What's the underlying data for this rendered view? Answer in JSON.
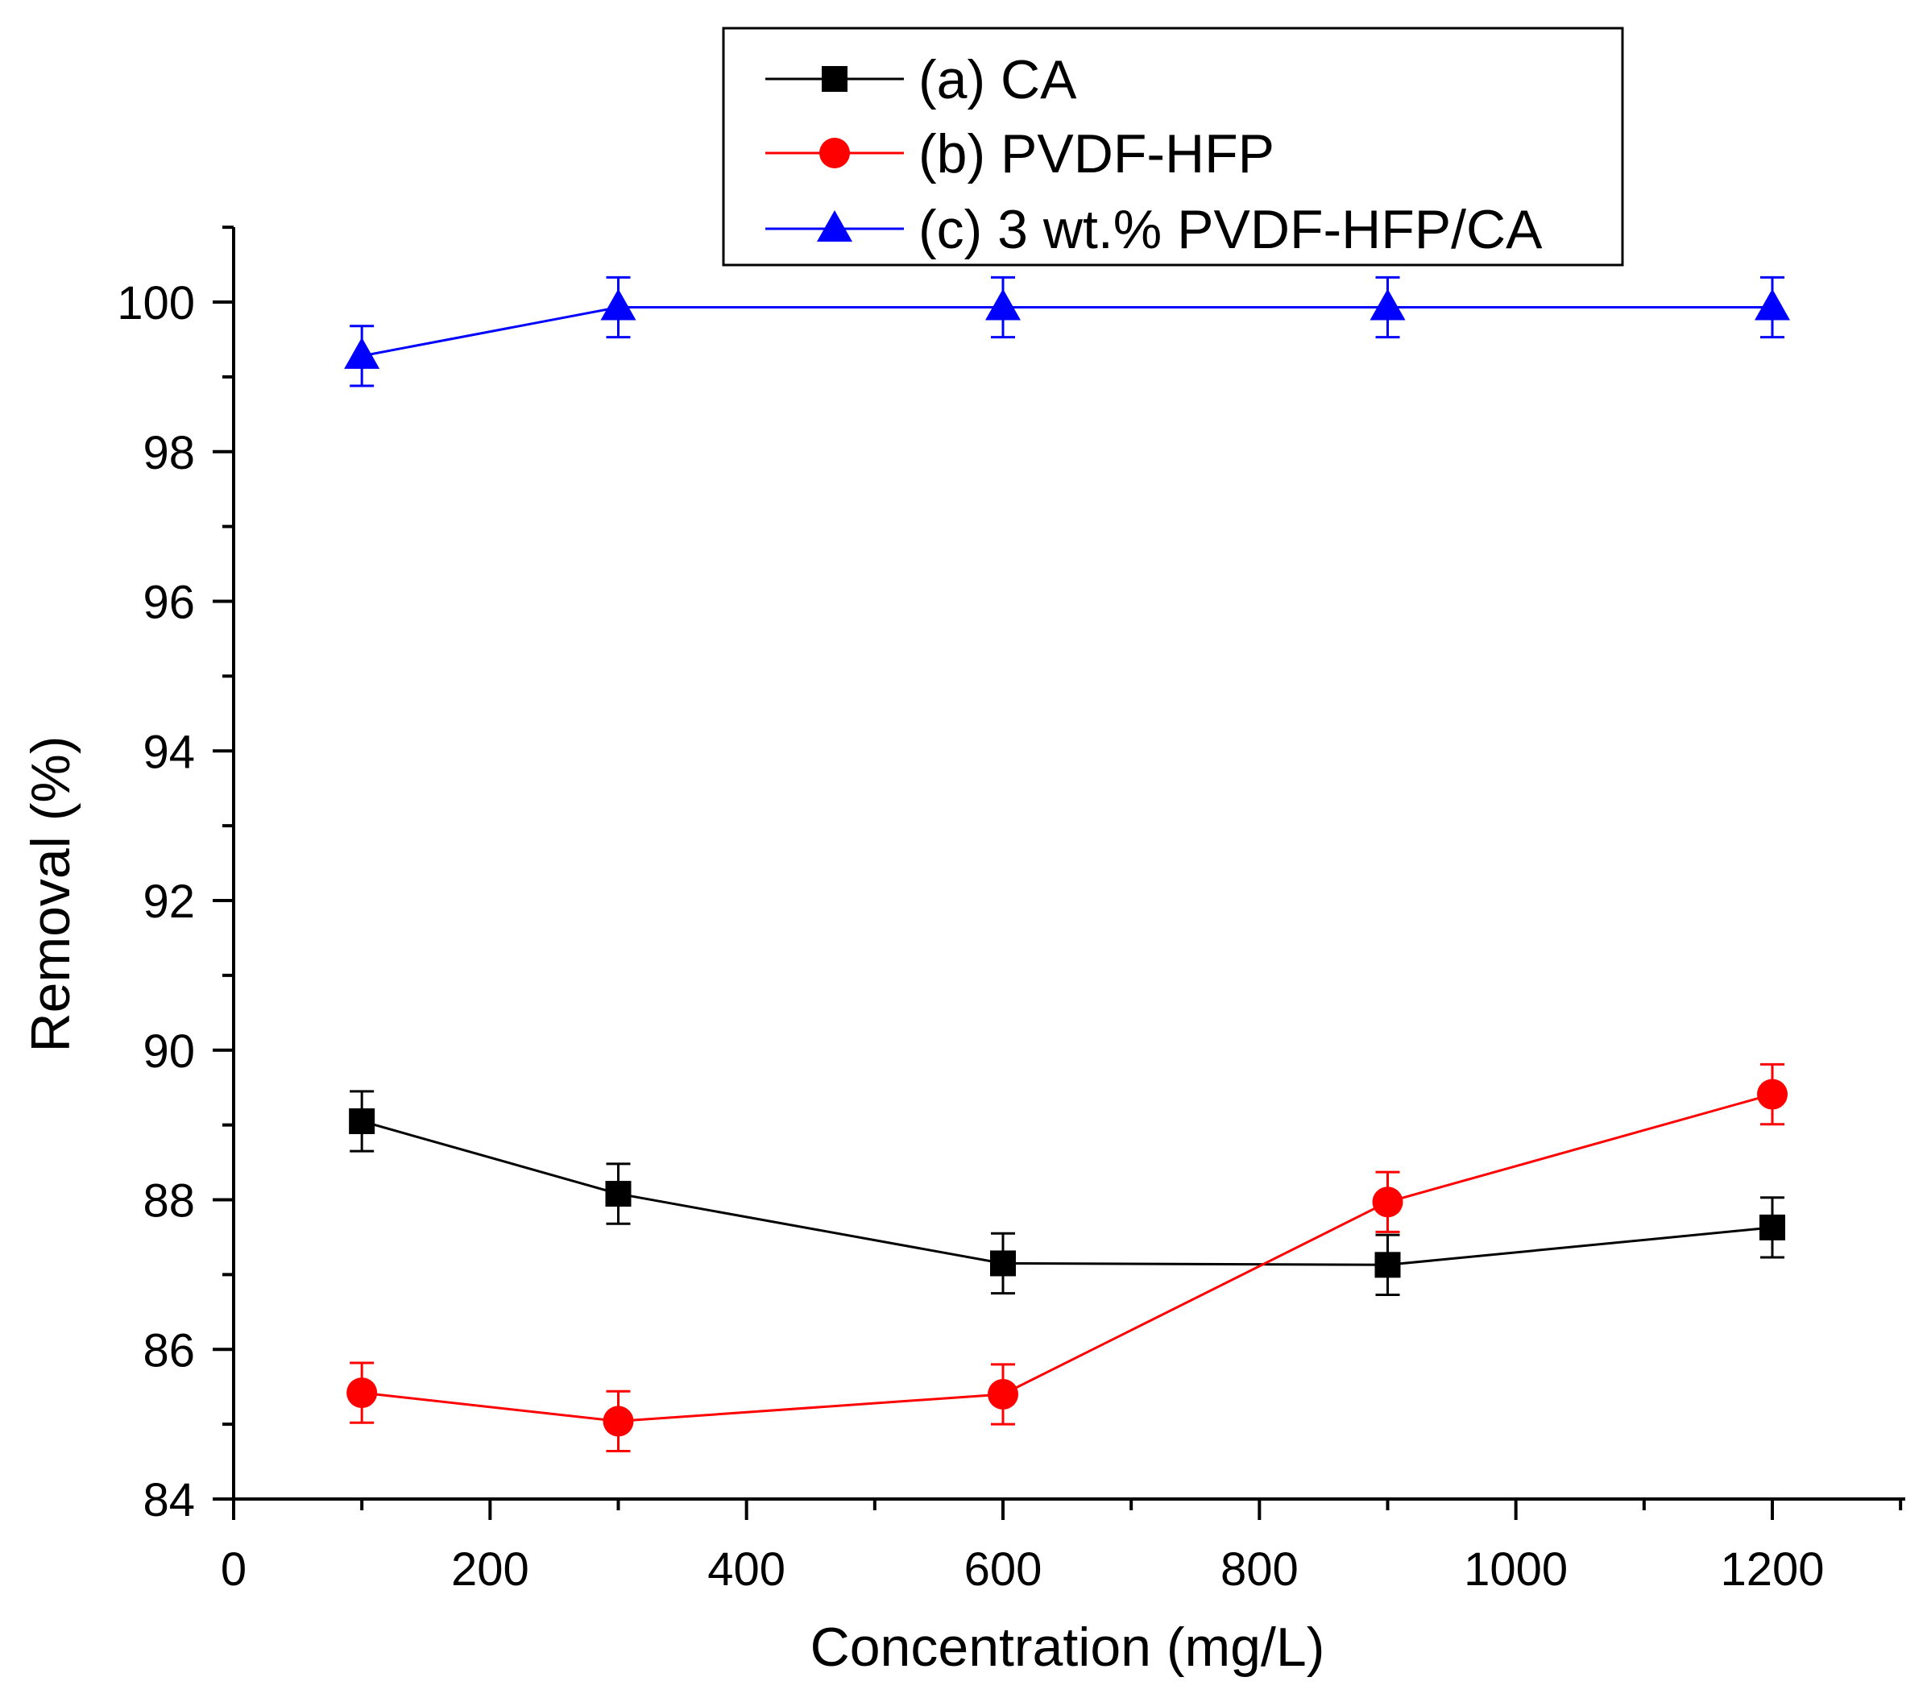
{
  "chart_data": {
    "type": "line",
    "xlabel": "Concentration (mg/L)",
    "ylabel": "Removal (%)",
    "xlim": [
      0,
      1300
    ],
    "ylim": [
      84,
      101
    ],
    "x_ticks": [
      "0",
      "200",
      "400",
      "600",
      "800",
      "1000",
      "1200"
    ],
    "y_ticks": [
      "84",
      "86",
      "88",
      "90",
      "92",
      "94",
      "96",
      "98",
      "100"
    ],
    "x_tick_values": [
      0,
      200,
      400,
      600,
      800,
      1000,
      1200
    ],
    "y_tick_values": [
      84,
      86,
      88,
      90,
      92,
      94,
      96,
      98,
      100
    ],
    "x": [
      100,
      300,
      600,
      900,
      1200
    ],
    "legend_position": "top-center",
    "grid": false,
    "series": [
      {
        "name": "(a) CA",
        "color": "#000000",
        "marker": "square",
        "values": [
          89.05,
          88.08,
          87.15,
          87.13,
          87.63
        ],
        "errors": [
          0.4,
          0.4,
          0.4,
          0.4,
          0.4
        ]
      },
      {
        "name": "(b) PVDF-HFP",
        "color": "#ff0000",
        "marker": "circle",
        "values": [
          85.42,
          85.04,
          85.4,
          87.97,
          89.41
        ],
        "errors": [
          0.4,
          0.4,
          0.4,
          0.4,
          0.4
        ]
      },
      {
        "name": "(c) 3 wt.% PVDF-HFP/CA",
        "color": "#0000ff",
        "marker": "triangle",
        "values": [
          99.28,
          99.93,
          99.93,
          99.93,
          99.93
        ],
        "errors": [
          0.4,
          0.4,
          0.4,
          0.4,
          0.4
        ]
      }
    ]
  }
}
